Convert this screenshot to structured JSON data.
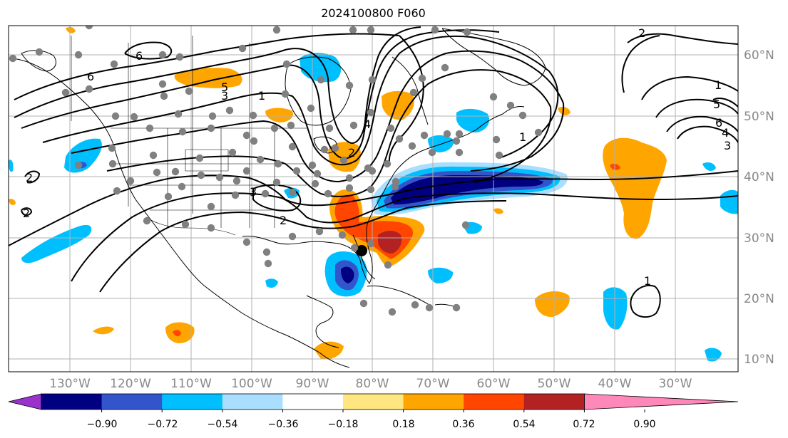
{
  "title": "2024100800 F060",
  "lon_labels": [
    "130°W",
    "120°W",
    "110°W",
    "100°W",
    "90°W",
    "80°W",
    "70°W",
    "60°W",
    "50°W",
    "40°W",
    "30°W"
  ],
  "lat_labels": [
    "60°N",
    "50°N",
    "40°N",
    "30°N",
    "20°N",
    "10°N"
  ],
  "colorbar": {
    "ticks": [
      "−0.90",
      "−0.72",
      "−0.54",
      "−0.36",
      "−0.18",
      "0.18",
      "0.36",
      "0.54",
      "0.72",
      "0.90"
    ],
    "colors": [
      "#9933cc",
      "#000080",
      "#3355cc",
      "#00bfff",
      "#aadeff",
      "#ffffff",
      "#ffe680",
      "#ffa500",
      "#ff4500",
      "#b22222",
      "#ff88bb"
    ]
  },
  "contour_labels": [
    "6",
    "6",
    "5",
    "3",
    "1",
    "2",
    "4",
    "3",
    "2",
    "2",
    "2",
    "1",
    "5",
    "6",
    "4",
    "3",
    "1",
    "2",
    "1"
  ],
  "colors": {
    "grid": "#b0b0b0",
    "label": "#888888",
    "contour": "#000000",
    "station": "#808080"
  }
}
